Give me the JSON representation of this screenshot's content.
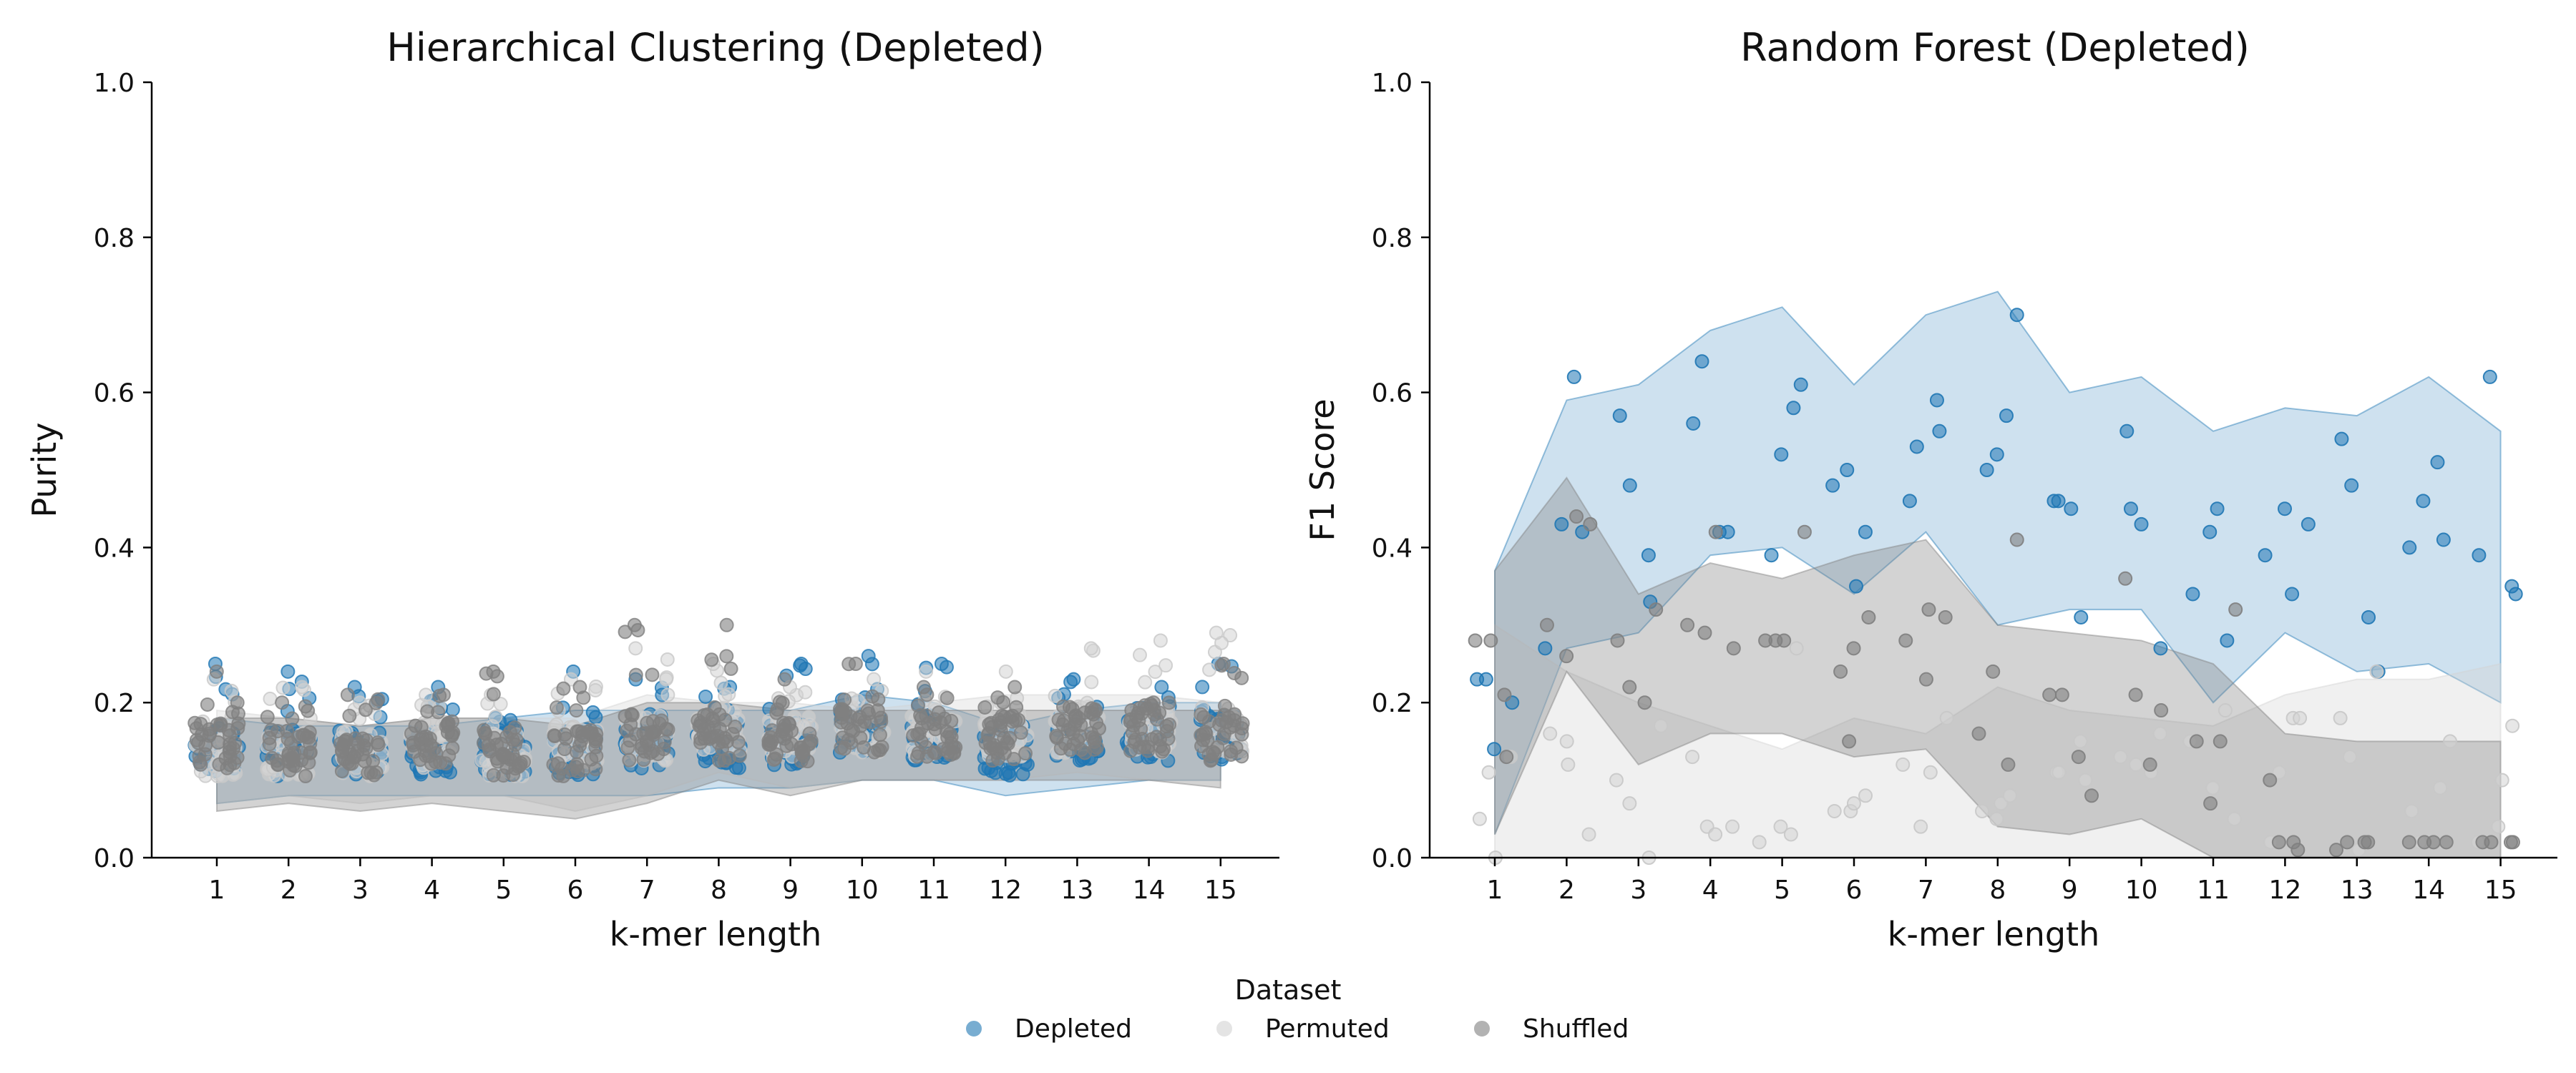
{
  "chart_data": [
    {
      "type": "scatter",
      "title": "Hierarchical Clustering (Depleted)",
      "xlabel": "k-mer length",
      "ylabel": "Purity",
      "x_ticks": [
        "1",
        "2",
        "3",
        "4",
        "5",
        "6",
        "7",
        "8",
        "9",
        "10",
        "11",
        "12",
        "13",
        "14",
        "15"
      ],
      "y_ticks": [
        "0.0",
        "0.2",
        "0.4",
        "0.6",
        "0.8",
        "1.0"
      ],
      "ylim": [
        0,
        1
      ],
      "grid": false,
      "series": [
        {
          "name": "Depleted",
          "color": "#1f77b4",
          "mean": [
            0.13,
            0.13,
            0.13,
            0.13,
            0.13,
            0.13,
            0.14,
            0.14,
            0.14,
            0.16,
            0.15,
            0.13,
            0.15,
            0.15,
            0.15
          ],
          "band_low": [
            0.07,
            0.08,
            0.08,
            0.08,
            0.08,
            0.08,
            0.08,
            0.09,
            0.09,
            0.1,
            0.1,
            0.08,
            0.09,
            0.1,
            0.1
          ],
          "band_high": [
            0.18,
            0.17,
            0.17,
            0.17,
            0.18,
            0.19,
            0.19,
            0.19,
            0.19,
            0.21,
            0.2,
            0.17,
            0.19,
            0.2,
            0.2
          ],
          "peak": [
            0.25,
            0.24,
            0.22,
            0.22,
            0.18,
            0.24,
            0.23,
            0.22,
            0.25,
            0.26,
            0.25,
            0.17,
            0.23,
            0.22,
            0.25
          ]
        },
        {
          "name": "Permuted",
          "color": "#d3d3d3",
          "mean": [
            0.13,
            0.13,
            0.13,
            0.14,
            0.13,
            0.14,
            0.15,
            0.16,
            0.15,
            0.16,
            0.15,
            0.15,
            0.16,
            0.16,
            0.16
          ],
          "band_low": [
            0.07,
            0.08,
            0.07,
            0.08,
            0.08,
            0.06,
            0.08,
            0.11,
            0.09,
            0.1,
            0.1,
            0.1,
            0.11,
            0.1,
            0.1
          ],
          "band_high": [
            0.19,
            0.18,
            0.17,
            0.18,
            0.18,
            0.18,
            0.21,
            0.2,
            0.2,
            0.19,
            0.2,
            0.21,
            0.21,
            0.21,
            0.2
          ],
          "peak": [
            0.23,
            0.22,
            0.2,
            0.21,
            0.21,
            0.23,
            0.27,
            0.25,
            0.22,
            0.23,
            0.24,
            0.24,
            0.27,
            0.28,
            0.29
          ]
        },
        {
          "name": "Shuffled",
          "color": "#808080",
          "mean": [
            0.14,
            0.13,
            0.12,
            0.14,
            0.13,
            0.13,
            0.15,
            0.15,
            0.14,
            0.16,
            0.15,
            0.15,
            0.16,
            0.16,
            0.15
          ],
          "band_low": [
            0.06,
            0.07,
            0.06,
            0.07,
            0.06,
            0.05,
            0.07,
            0.1,
            0.08,
            0.1,
            0.1,
            0.1,
            0.1,
            0.1,
            0.09
          ],
          "band_high": [
            0.18,
            0.18,
            0.17,
            0.18,
            0.18,
            0.17,
            0.2,
            0.2,
            0.19,
            0.19,
            0.19,
            0.19,
            0.19,
            0.19,
            0.19
          ],
          "peak": [
            0.24,
            0.2,
            0.21,
            0.21,
            0.24,
            0.22,
            0.3,
            0.3,
            0.23,
            0.25,
            0.22,
            0.22,
            0.18,
            0.2,
            0.25
          ]
        }
      ]
    },
    {
      "type": "scatter",
      "title": "Random Forest (Depleted)",
      "xlabel": "k-mer length",
      "ylabel": "F1 Score",
      "x_ticks": [
        "1",
        "2",
        "3",
        "4",
        "5",
        "6",
        "7",
        "8",
        "9",
        "10",
        "11",
        "12",
        "13",
        "14",
        "15"
      ],
      "y_ticks": [
        "0.0",
        "0.2",
        "0.4",
        "0.6",
        "0.8",
        "1.0"
      ],
      "ylim": [
        0,
        1
      ],
      "grid": false,
      "series": [
        {
          "name": "Depleted",
          "color": "#1f77b4",
          "band_low": [
            0.03,
            0.27,
            0.29,
            0.39,
            0.4,
            0.34,
            0.42,
            0.3,
            0.32,
            0.32,
            0.2,
            0.29,
            0.24,
            0.25,
            0.2
          ],
          "band_high": [
            0.37,
            0.59,
            0.61,
            0.68,
            0.71,
            0.61,
            0.7,
            0.73,
            0.6,
            0.62,
            0.55,
            0.58,
            0.57,
            0.62,
            0.55
          ],
          "points": [
            [
              0.23,
              0.23,
              0.14,
              0.2
            ],
            [
              0.27,
              0.43,
              0.62,
              0.42
            ],
            [
              0.57,
              0.48,
              0.39,
              0.33
            ],
            [
              0.56,
              0.64,
              0.42,
              0.42
            ],
            [
              0.39,
              0.52,
              0.58,
              0.61
            ],
            [
              0.48,
              0.5,
              0.35,
              0.42
            ],
            [
              0.46,
              0.53,
              0.59,
              0.55
            ],
            [
              0.5,
              0.52,
              0.57,
              0.7
            ],
            [
              0.46,
              0.46,
              0.45,
              0.31
            ],
            [
              0.55,
              0.45,
              0.43,
              0.27
            ],
            [
              0.34,
              0.42,
              0.45,
              0.28
            ],
            [
              0.39,
              0.45,
              0.34,
              0.43
            ],
            [
              0.54,
              0.48,
              0.31,
              0.24
            ],
            [
              0.4,
              0.46,
              0.51,
              0.41
            ],
            [
              0.39,
              0.62,
              0.35,
              0.34
            ]
          ]
        },
        {
          "name": "Permuted",
          "color": "#d3d3d3",
          "band_low": [
            0.0,
            0.0,
            0.0,
            0.0,
            0.0,
            0.0,
            0.0,
            0.0,
            0.0,
            0.0,
            0.0,
            0.0,
            0.0,
            0.0,
            0.0
          ],
          "band_high": [
            0.3,
            0.24,
            0.2,
            0.17,
            0.14,
            0.18,
            0.16,
            0.22,
            0.19,
            0.18,
            0.17,
            0.21,
            0.23,
            0.23,
            0.25
          ],
          "points": [
            [
              0.05,
              0.11,
              0.0,
              0.13
            ],
            [
              0.16,
              0.15,
              0.12,
              0.03
            ],
            [
              0.1,
              0.07,
              0.0,
              0.17
            ],
            [
              0.13,
              0.04,
              0.03,
              0.04
            ],
            [
              0.02,
              0.04,
              0.03,
              0.27
            ],
            [
              0.06,
              0.06,
              0.07,
              0.08
            ],
            [
              0.12,
              0.04,
              0.11,
              0.18
            ],
            [
              0.06,
              0.05,
              0.07,
              0.08
            ],
            [
              0.11,
              0.11,
              0.15,
              0.1
            ],
            [
              0.13,
              0.12,
              0.11,
              0.16
            ],
            [
              0.15,
              0.09,
              0.19,
              0.05
            ],
            [
              0.02,
              0.11,
              0.18,
              0.18
            ],
            [
              0.18,
              0.13,
              0.01,
              0.24
            ],
            [
              0.06,
              0.02,
              0.09,
              0.15
            ],
            [
              0.02,
              0.04,
              0.1,
              0.17
            ]
          ]
        },
        {
          "name": "Shuffled",
          "color": "#808080",
          "band_low": [
            0.03,
            0.24,
            0.12,
            0.16,
            0.16,
            0.13,
            0.14,
            0.04,
            0.03,
            0.05,
            0.0,
            0.0,
            0.0,
            0.0,
            0.0
          ],
          "band_high": [
            0.37,
            0.49,
            0.34,
            0.38,
            0.36,
            0.39,
            0.41,
            0.3,
            0.29,
            0.28,
            0.25,
            0.16,
            0.15,
            0.15,
            0.15
          ],
          "points": [
            [
              0.28,
              0.28,
              0.21,
              0.13
            ],
            [
              0.3,
              0.26,
              0.44,
              0.43
            ],
            [
              0.28,
              0.22,
              0.2,
              0.32
            ],
            [
              0.3,
              0.29,
              0.42,
              0.27
            ],
            [
              0.28,
              0.28,
              0.28,
              0.42
            ],
            [
              0.24,
              0.15,
              0.27,
              0.31
            ],
            [
              0.28,
              0.23,
              0.32,
              0.31
            ],
            [
              0.16,
              0.24,
              0.12,
              0.41
            ],
            [
              0.21,
              0.21,
              0.13,
              0.08
            ],
            [
              0.36,
              0.21,
              0.12,
              0.19
            ],
            [
              0.15,
              0.07,
              0.15,
              0.32
            ],
            [
              0.1,
              0.02,
              0.02,
              0.01
            ],
            [
              0.01,
              0.02,
              0.02,
              0.02
            ],
            [
              0.02,
              0.02,
              0.02,
              0.02
            ],
            [
              0.02,
              0.02,
              0.02,
              0.02
            ]
          ]
        }
      ]
    }
  ],
  "legend": {
    "title": "Dataset",
    "items": [
      {
        "label": "Depleted",
        "color": "#1f77b4"
      },
      {
        "label": "Permuted",
        "color": "#d3d3d3"
      },
      {
        "label": "Shuffled",
        "color": "#808080"
      }
    ]
  }
}
